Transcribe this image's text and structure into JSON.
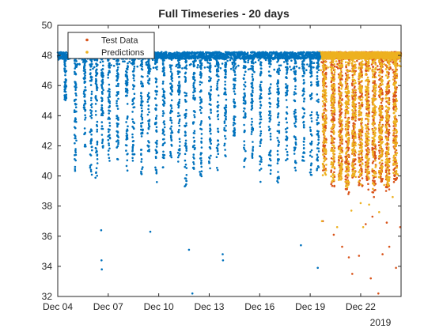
{
  "chart_data": {
    "type": "scatter",
    "title": "Full Timeseries - 20 days",
    "xlabel": "",
    "ylabel": "",
    "x_tick_labels": [
      "Dec 04",
      "Dec 07",
      "Dec 10",
      "Dec 13",
      "Dec 16",
      "Dec 19",
      "Dec 22"
    ],
    "x_tick_days": [
      4,
      7,
      10,
      13,
      16,
      19,
      22
    ],
    "x_secondary_label": "2019",
    "xlim_days": [
      4,
      24.4
    ],
    "ylim": [
      32,
      50
    ],
    "y_ticks": [
      32,
      34,
      36,
      38,
      40,
      42,
      44,
      46,
      48,
      50
    ],
    "grid": false,
    "legend_placement": "top-left",
    "series": [
      {
        "name": "Test Data",
        "color": "#D95319",
        "baseline": 48.0,
        "x_range_days": [
          19.5,
          24.4
        ],
        "dips": [
          [
            19.85,
            40.3
          ],
          [
            20.35,
            39.3
          ],
          [
            20.8,
            39.7
          ],
          [
            21.2,
            38.8
          ],
          [
            21.6,
            39.8
          ],
          [
            22.0,
            39.2
          ],
          [
            22.4,
            39.0
          ],
          [
            22.8,
            38.6
          ],
          [
            23.2,
            39.6
          ],
          [
            23.6,
            38.9
          ],
          [
            24.05,
            39.6
          ]
        ],
        "outliers": [
          [
            19.75,
            37.0
          ],
          [
            20.4,
            36.1
          ],
          [
            20.9,
            35.3
          ],
          [
            21.3,
            34.6
          ],
          [
            21.5,
            33.5
          ],
          [
            21.9,
            34.7
          ],
          [
            22.3,
            36.8
          ],
          [
            22.6,
            33.2
          ],
          [
            22.7,
            37.3
          ],
          [
            23.05,
            32.2
          ],
          [
            23.3,
            34.8
          ],
          [
            23.55,
            36.9
          ],
          [
            23.7,
            35.3
          ],
          [
            24.1,
            33.9
          ],
          [
            24.35,
            36.6
          ]
        ]
      },
      {
        "name": "Predictions",
        "color": "#EDB120",
        "baseline": 48.0,
        "x_range_days": [
          19.5,
          24.4
        ],
        "dips": [
          [
            19.85,
            40.0
          ],
          [
            20.35,
            39.6
          ],
          [
            20.8,
            39.5
          ],
          [
            21.2,
            39.2
          ],
          [
            21.6,
            39.7
          ],
          [
            22.0,
            39.4
          ],
          [
            22.4,
            39.8
          ],
          [
            22.8,
            39.1
          ],
          [
            23.2,
            39.7
          ],
          [
            23.6,
            39.3
          ],
          [
            24.05,
            40.1
          ]
        ],
        "outliers": [
          [
            19.7,
            37.0
          ],
          [
            20.6,
            36.6
          ],
          [
            21.45,
            37.7
          ],
          [
            22.0,
            38.2
          ],
          [
            22.15,
            36.6
          ],
          [
            22.5,
            38.1
          ],
          [
            23.1,
            37.6
          ],
          [
            23.4,
            39.4
          ],
          [
            23.9,
            38.6
          ],
          [
            24.2,
            40.1
          ]
        ]
      },
      {
        "name": "",
        "color": "#0072BD",
        "baseline": 48.0,
        "x_range_days": [
          4.0,
          19.6
        ],
        "dips": [
          [
            4.45,
            45.0
          ],
          [
            5.05,
            40.3
          ],
          [
            5.6,
            41.8
          ],
          [
            5.98,
            39.6
          ],
          [
            6.3,
            39.8
          ],
          [
            6.65,
            41.7
          ],
          [
            7.05,
            40.6
          ],
          [
            7.55,
            41.1
          ],
          [
            8.1,
            40.2
          ],
          [
            8.5,
            40.9
          ],
          [
            9.0,
            40.1
          ],
          [
            9.4,
            41.6
          ],
          [
            9.85,
            39.4
          ],
          [
            10.3,
            40.5
          ],
          [
            10.75,
            41.0
          ],
          [
            11.2,
            40.8
          ],
          [
            11.6,
            39.2
          ],
          [
            12.1,
            40.3
          ],
          [
            12.5,
            39.4
          ],
          [
            13.05,
            40.5
          ],
          [
            13.5,
            40.1
          ],
          [
            13.95,
            41.3
          ],
          [
            14.5,
            42.5
          ],
          [
            15.1,
            40.4
          ],
          [
            15.55,
            41.2
          ],
          [
            16.05,
            39.3
          ],
          [
            16.6,
            40.1
          ],
          [
            17.1,
            39.4
          ],
          [
            17.6,
            41.0
          ],
          [
            18.1,
            40.2
          ],
          [
            18.6,
            40.8
          ],
          [
            19.05,
            39.8
          ],
          [
            19.45,
            40.3
          ]
        ],
        "outliers": [
          [
            6.58,
            36.4
          ],
          [
            6.6,
            34.4
          ],
          [
            6.62,
            33.8
          ],
          [
            9.5,
            36.3
          ],
          [
            11.8,
            35.1
          ],
          [
            12.0,
            32.2
          ],
          [
            13.8,
            34.8
          ],
          [
            13.82,
            34.4
          ],
          [
            18.45,
            35.4
          ],
          [
            19.45,
            33.9
          ]
        ]
      }
    ]
  }
}
